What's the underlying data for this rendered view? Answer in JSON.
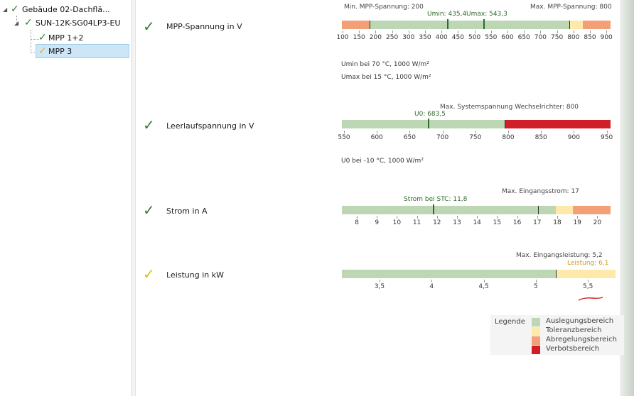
{
  "tree": {
    "items": [
      {
        "label": "Gebäude 02-Dachflä...",
        "status": "ok"
      },
      {
        "label": "SUN-12K-SG04LP3-EU",
        "status": "ok"
      },
      {
        "label": "MPP 1+2",
        "status": "ok"
      },
      {
        "label": "MPP 3",
        "status": "warning",
        "selected": true
      }
    ]
  },
  "colors": {
    "ok": "#2f7d2f",
    "warning": "#e0b81e",
    "auslegung": "#bdd7b5",
    "toleranz": "#fde9aa",
    "abregelung": "#f3a078",
    "verbot": "#d01f26",
    "marker": "#2e6b2e"
  },
  "sections": {
    "mpp": {
      "label": "MPP-Spannung in V",
      "status": "ok",
      "min_label": "Min. MPP-Spannung: 200",
      "max_label": "Max. MPP-Spannung: 800",
      "markers": [
        {
          "label": "Umin: 435,4",
          "value": 435.4
        },
        {
          "label": "Umax: 543,3",
          "value": 543.3
        }
      ],
      "notes": [
        "Umin bei 70 °C, 1000 W/m²",
        "Umax bei 15 °C, 1000 W/m²"
      ],
      "ticks": [
        "100",
        "150",
        "200",
        "250",
        "300",
        "350",
        "400",
        "450",
        "500",
        "550",
        "600",
        "650",
        "700",
        "750",
        "800",
        "850",
        "900"
      ]
    },
    "leerlauf": {
      "label": "Leerlaufspannung in V",
      "status": "ok",
      "max_label": "Max. Systemspannung Wechselrichter: 800",
      "markers": [
        {
          "label": "U0: 683,5",
          "value": 683.5
        }
      ],
      "notes": [
        "U0 bei -10 °C, 1000 W/m²"
      ],
      "ticks": [
        "550",
        "600",
        "650",
        "700",
        "750",
        "800",
        "850",
        "900",
        "950"
      ]
    },
    "strom": {
      "label": "Strom in A",
      "status": "ok",
      "max_label": "Max. Eingangsstrom: 17",
      "markers": [
        {
          "label": "Strom bei STC: 11,8",
          "value": 11.8
        }
      ],
      "ticks": [
        "8",
        "9",
        "10",
        "11",
        "12",
        "13",
        "14",
        "15",
        "16",
        "17",
        "18",
        "19",
        "20"
      ]
    },
    "leistung": {
      "label": "Leistung in kW",
      "status": "warning",
      "max_label": "Max. Eingangsleistung: 5,2",
      "value_label": "Leistung: 6,1",
      "ticks": [
        "3,5",
        "4",
        "4,5",
        "5",
        "5,5"
      ]
    }
  },
  "legend": {
    "title": "Legende",
    "items": [
      {
        "label": "Auslegungsbereich",
        "color": "#bdd7b5"
      },
      {
        "label": "Toleranzbereich",
        "color": "#fde9aa"
      },
      {
        "label": "Abregelungsbereich",
        "color": "#f3a078"
      },
      {
        "label": "Verbotsbereich",
        "color": "#d01f26"
      }
    ]
  }
}
